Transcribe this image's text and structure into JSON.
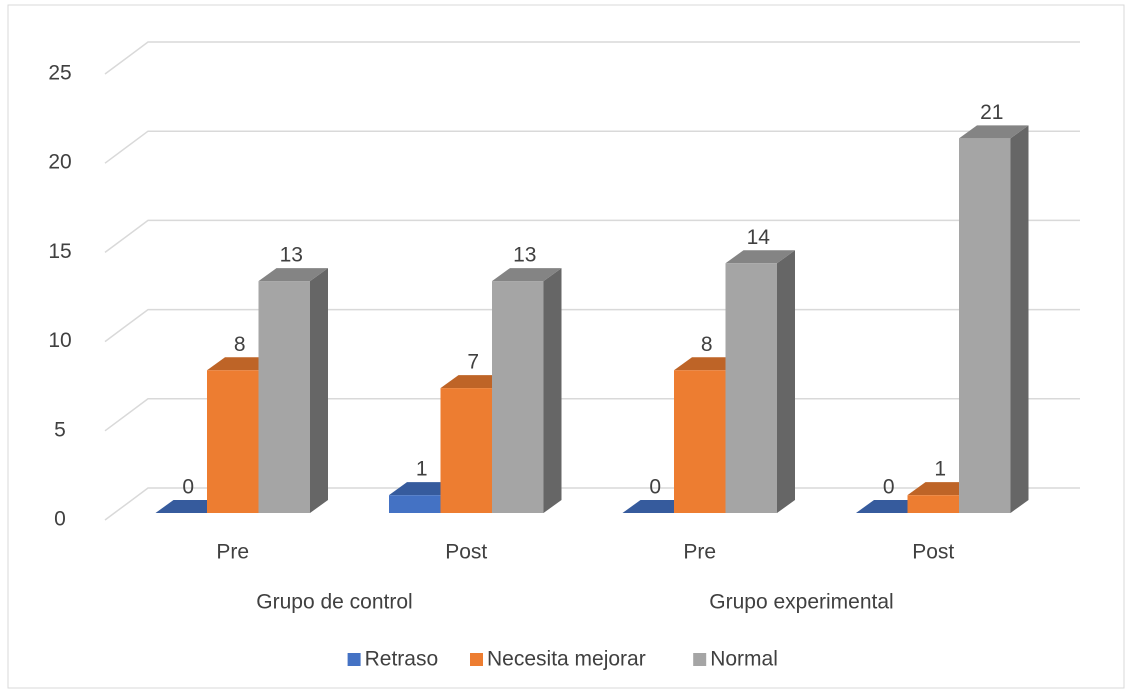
{
  "chart_data": {
    "type": "bar3d",
    "categories": [
      "Pre",
      "Post",
      "Pre",
      "Post"
    ],
    "groups": [
      {
        "label": "Grupo de control",
        "span": 2
      },
      {
        "label": "Grupo experimental",
        "span": 2
      }
    ],
    "series": [
      {
        "name": "Retraso",
        "color": "#4472c4",
        "values": [
          0,
          1,
          0,
          0
        ]
      },
      {
        "name": "Necesita mejorar",
        "color": "#ed7d31",
        "values": [
          8,
          7,
          8,
          1
        ]
      },
      {
        "name": "Normal",
        "color": "#a5a5a5",
        "values": [
          13,
          13,
          14,
          21
        ]
      }
    ],
    "ylim": [
      0,
      25
    ],
    "yticks": [
      0,
      5,
      10,
      15,
      20,
      25
    ],
    "grid": true,
    "legend": "bottom"
  }
}
